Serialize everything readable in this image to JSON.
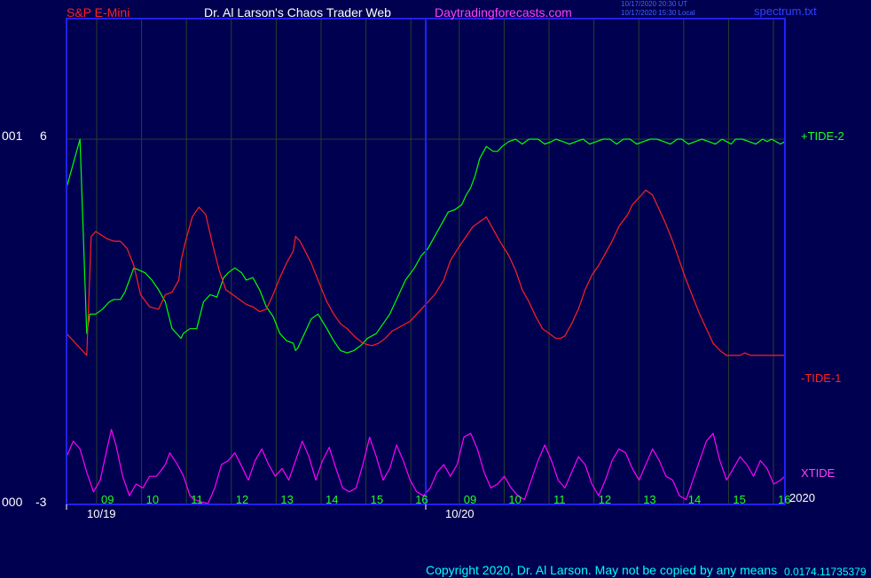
{
  "header": {
    "instrument": "S&P E-Mini",
    "author": "Dr. Al Larson's Chaos Trader Web",
    "site": "Daytradingforecasts.com",
    "time_ut": "10/17/2020 20:30 UT",
    "time_local": "10/17/2020 15:30 Local",
    "file": "spectrum.txt"
  },
  "left_labels": {
    "top_id": "001",
    "bottom_id": "000"
  },
  "footer": {
    "copyright": "Copyright 2020, Dr. Al Larson. May not be copied by any means",
    "code": "0.0174.11735379"
  },
  "colors": {
    "background": "#000050",
    "frame": "#2020ff",
    "plus_tide": "#00ff00",
    "minus_tide": "#ff2020",
    "xtide": "#ff00ff",
    "gridline": "#284028",
    "axis_text": "#20ff20",
    "label_white": "#ffffff",
    "title_red": "#ff2020",
    "title_magenta": "#ff40ff"
  },
  "chart_data": {
    "type": "line",
    "ylim": [
      -3,
      6
    ],
    "y_ticks": [
      "6",
      "-3"
    ],
    "hour_labels": [
      "09",
      "10",
      "11",
      "12",
      "13",
      "14",
      "15",
      "16",
      "09",
      "10",
      "11",
      "12",
      "13",
      "14",
      "15",
      "16"
    ],
    "dates": [
      "10/19",
      "10/20"
    ],
    "year": "2020",
    "series": [
      {
        "name": "+TIDE-2",
        "color": "#00ff00",
        "lane": "upper",
        "x": [
          0.0,
          0.3,
          0.45,
          0.52,
          0.65,
          0.8,
          0.95,
          1.05,
          1.2,
          1.3,
          1.5,
          1.75,
          1.9,
          2.05,
          2.2,
          2.35,
          2.5,
          2.55,
          2.6,
          2.75,
          2.9,
          3.05,
          3.2,
          3.35,
          3.5,
          3.6,
          3.75,
          3.9,
          4.0,
          4.15,
          4.3,
          4.45,
          4.6,
          4.75,
          4.9,
          5.05,
          5.1,
          5.15,
          5.3,
          5.45,
          5.6,
          5.8,
          5.95,
          6.1,
          6.25,
          6.4,
          6.55,
          6.7,
          6.9,
          7.05,
          7.2,
          7.35,
          7.55,
          7.75,
          7.9,
          8.05,
          8.2,
          8.35,
          8.5,
          8.65,
          8.8,
          8.9,
          9.0,
          9.1,
          9.2,
          9.35,
          9.5,
          9.6,
          9.7,
          9.85,
          10.0,
          10.15,
          10.3,
          10.5,
          10.65,
          10.8,
          10.9,
          11.05,
          11.2,
          11.35,
          11.5,
          11.65,
          11.8,
          11.95,
          12.1,
          12.25,
          12.4,
          12.55,
          12.7,
          12.85,
          13.0,
          13.15,
          13.3,
          13.45,
          13.6,
          13.7,
          13.85,
          14.0,
          14.15,
          14.3,
          14.45,
          14.6,
          14.7,
          14.8,
          14.9,
          15.05,
          15.2,
          15.35,
          15.5,
          15.6,
          15.7,
          15.8,
          15.9,
          16.0,
          16.0
        ],
        "y": [
          0.8,
          1.0,
          0.2,
          0.28,
          0.28,
          0.3,
          0.33,
          0.34,
          0.34,
          0.37,
          0.47,
          0.45,
          0.42,
          0.38,
          0.33,
          0.22,
          0.19,
          0.18,
          0.2,
          0.22,
          0.22,
          0.33,
          0.36,
          0.35,
          0.43,
          0.45,
          0.47,
          0.45,
          0.42,
          0.43,
          0.38,
          0.31,
          0.27,
          0.2,
          0.17,
          0.16,
          0.13,
          0.14,
          0.2,
          0.26,
          0.28,
          0.22,
          0.17,
          0.13,
          0.12,
          0.13,
          0.15,
          0.18,
          0.2,
          0.24,
          0.28,
          0.34,
          0.42,
          0.47,
          0.52,
          0.55,
          0.6,
          0.65,
          0.7,
          0.71,
          0.73,
          0.77,
          0.8,
          0.85,
          0.92,
          0.97,
          0.95,
          0.95,
          0.97,
          0.99,
          1.0,
          0.98,
          1.0,
          1.0,
          0.98,
          0.99,
          1.0,
          0.99,
          0.98,
          0.99,
          1.0,
          0.98,
          0.99,
          1.0,
          1.0,
          0.98,
          1.0,
          1.0,
          0.98,
          0.99,
          1.0,
          1.0,
          0.99,
          0.98,
          1.0,
          1.0,
          0.98,
          0.99,
          1.0,
          0.99,
          0.98,
          1.0,
          0.99,
          0.98,
          1.0,
          1.0,
          0.99,
          0.98,
          1.0,
          0.99,
          1.0,
          0.99,
          0.98,
          0.99,
          1.0
        ]
      },
      {
        "name": "-TIDE-1",
        "color": "#ff2020",
        "lane": "upper",
        "x": [
          0.0,
          0.0,
          0.45,
          0.55,
          0.65,
          0.9,
          1.05,
          1.2,
          1.35,
          1.5,
          1.65,
          1.85,
          2.05,
          2.2,
          2.35,
          2.5,
          2.55,
          2.65,
          2.8,
          2.95,
          3.1,
          3.25,
          3.4,
          3.55,
          3.7,
          3.85,
          4.0,
          4.15,
          4.3,
          4.45,
          4.6,
          4.75,
          4.9,
          5.05,
          5.1,
          5.2,
          5.45,
          5.6,
          5.8,
          5.95,
          6.1,
          6.25,
          6.4,
          6.6,
          6.8,
          6.95,
          7.1,
          7.25,
          7.45,
          7.65,
          7.8,
          8.0,
          8.2,
          8.4,
          8.55,
          8.75,
          8.9,
          9.05,
          9.2,
          9.35,
          9.5,
          9.65,
          9.85,
          10.0,
          10.15,
          10.3,
          10.45,
          10.6,
          10.75,
          10.9,
          11.0,
          11.1,
          11.25,
          11.4,
          11.55,
          11.7,
          11.85,
          12.0,
          12.15,
          12.3,
          12.5,
          12.6,
          12.75,
          12.9,
          13.05,
          13.2,
          13.35,
          13.5,
          13.65,
          13.8,
          13.95,
          14.1,
          14.25,
          14.4,
          14.55,
          14.7,
          14.8,
          14.9,
          15.0,
          15.1,
          15.25,
          15.4,
          15.55,
          15.7,
          15.8,
          15.95,
          16.0
        ],
        "y": [
          0.35,
          0.2,
          0.11,
          0.6,
          0.62,
          0.59,
          0.58,
          0.58,
          0.55,
          0.48,
          0.36,
          0.31,
          0.3,
          0.36,
          0.37,
          0.42,
          0.5,
          0.58,
          0.68,
          0.72,
          0.69,
          0.57,
          0.46,
          0.38,
          0.36,
          0.34,
          0.32,
          0.31,
          0.29,
          0.3,
          0.36,
          0.43,
          0.49,
          0.54,
          0.6,
          0.58,
          0.49,
          0.42,
          0.33,
          0.28,
          0.24,
          0.22,
          0.19,
          0.16,
          0.15,
          0.16,
          0.18,
          0.21,
          0.23,
          0.25,
          0.28,
          0.32,
          0.36,
          0.42,
          0.5,
          0.56,
          0.6,
          0.64,
          0.66,
          0.68,
          0.63,
          0.58,
          0.52,
          0.46,
          0.38,
          0.33,
          0.27,
          0.22,
          0.2,
          0.18,
          0.18,
          0.19,
          0.24,
          0.3,
          0.38,
          0.44,
          0.48,
          0.53,
          0.58,
          0.64,
          0.69,
          0.73,
          0.76,
          0.79,
          0.77,
          0.71,
          0.65,
          0.58,
          0.5,
          0.42,
          0.35,
          0.28,
          0.22,
          0.16,
          0.13,
          0.11,
          0.11,
          0.11,
          0.11,
          0.12,
          0.11,
          0.11,
          0.11,
          0.11,
          0.11,
          0.11,
          0.11
        ]
      },
      {
        "name": "XTIDE",
        "color": "#ff00ff",
        "lane": "lower",
        "x": [
          0.0,
          0.15,
          0.3,
          0.45,
          0.6,
          0.75,
          0.9,
          1.0,
          1.1,
          1.25,
          1.4,
          1.55,
          1.7,
          1.85,
          2.0,
          2.1,
          2.2,
          2.3,
          2.45,
          2.6,
          2.75,
          2.85,
          3.0,
          3.15,
          3.3,
          3.45,
          3.6,
          3.75,
          3.9,
          4.05,
          4.2,
          4.35,
          4.5,
          4.65,
          4.8,
          4.95,
          5.1,
          5.25,
          5.4,
          5.55,
          5.7,
          5.85,
          6.0,
          6.15,
          6.3,
          6.45,
          6.6,
          6.75,
          6.9,
          7.05,
          7.2,
          7.35,
          7.5,
          7.65,
          7.8,
          7.95,
          8.1,
          8.25,
          8.4,
          8.55,
          8.7,
          8.85,
          9.0,
          9.15,
          9.3,
          9.45,
          9.6,
          9.75,
          9.9,
          10.05,
          10.2,
          10.35,
          10.5,
          10.65,
          10.8,
          10.95,
          11.1,
          11.25,
          11.4,
          11.55,
          11.7,
          11.85,
          12.0,
          12.15,
          12.3,
          12.45,
          12.6,
          12.75,
          12.9,
          13.05,
          13.2,
          13.35,
          13.5,
          13.65,
          13.8,
          13.95,
          14.1,
          14.25,
          14.4,
          14.55,
          14.7,
          14.85,
          15.0,
          15.15,
          15.3,
          15.45,
          15.6,
          15.75,
          15.9,
          16.0
        ],
        "y": [
          0.6,
          0.8,
          0.7,
          0.4,
          0.15,
          0.3,
          0.7,
          0.95,
          0.75,
          0.35,
          0.1,
          0.25,
          0.2,
          0.35,
          0.35,
          0.42,
          0.5,
          0.65,
          0.52,
          0.36,
          0.1,
          0.05,
          0.02,
          0.0,
          0.2,
          0.5,
          0.55,
          0.65,
          0.48,
          0.3,
          0.55,
          0.7,
          0.5,
          0.35,
          0.45,
          0.3,
          0.55,
          0.8,
          0.6,
          0.3,
          0.55,
          0.72,
          0.45,
          0.2,
          0.15,
          0.2,
          0.5,
          0.85,
          0.6,
          0.3,
          0.45,
          0.75,
          0.55,
          0.3,
          0.15,
          0.1,
          0.2,
          0.4,
          0.5,
          0.35,
          0.5,
          0.85,
          0.9,
          0.7,
          0.4,
          0.2,
          0.25,
          0.35,
          0.2,
          0.1,
          0.05,
          0.3,
          0.55,
          0.75,
          0.55,
          0.3,
          0.2,
          0.4,
          0.6,
          0.5,
          0.25,
          0.1,
          0.3,
          0.55,
          0.7,
          0.65,
          0.45,
          0.3,
          0.5,
          0.7,
          0.55,
          0.35,
          0.3,
          0.1,
          0.05,
          0.3,
          0.55,
          0.8,
          0.9,
          0.55,
          0.3,
          0.45,
          0.6,
          0.5,
          0.35,
          0.55,
          0.45,
          0.25,
          0.3,
          0.35
        ]
      }
    ]
  }
}
